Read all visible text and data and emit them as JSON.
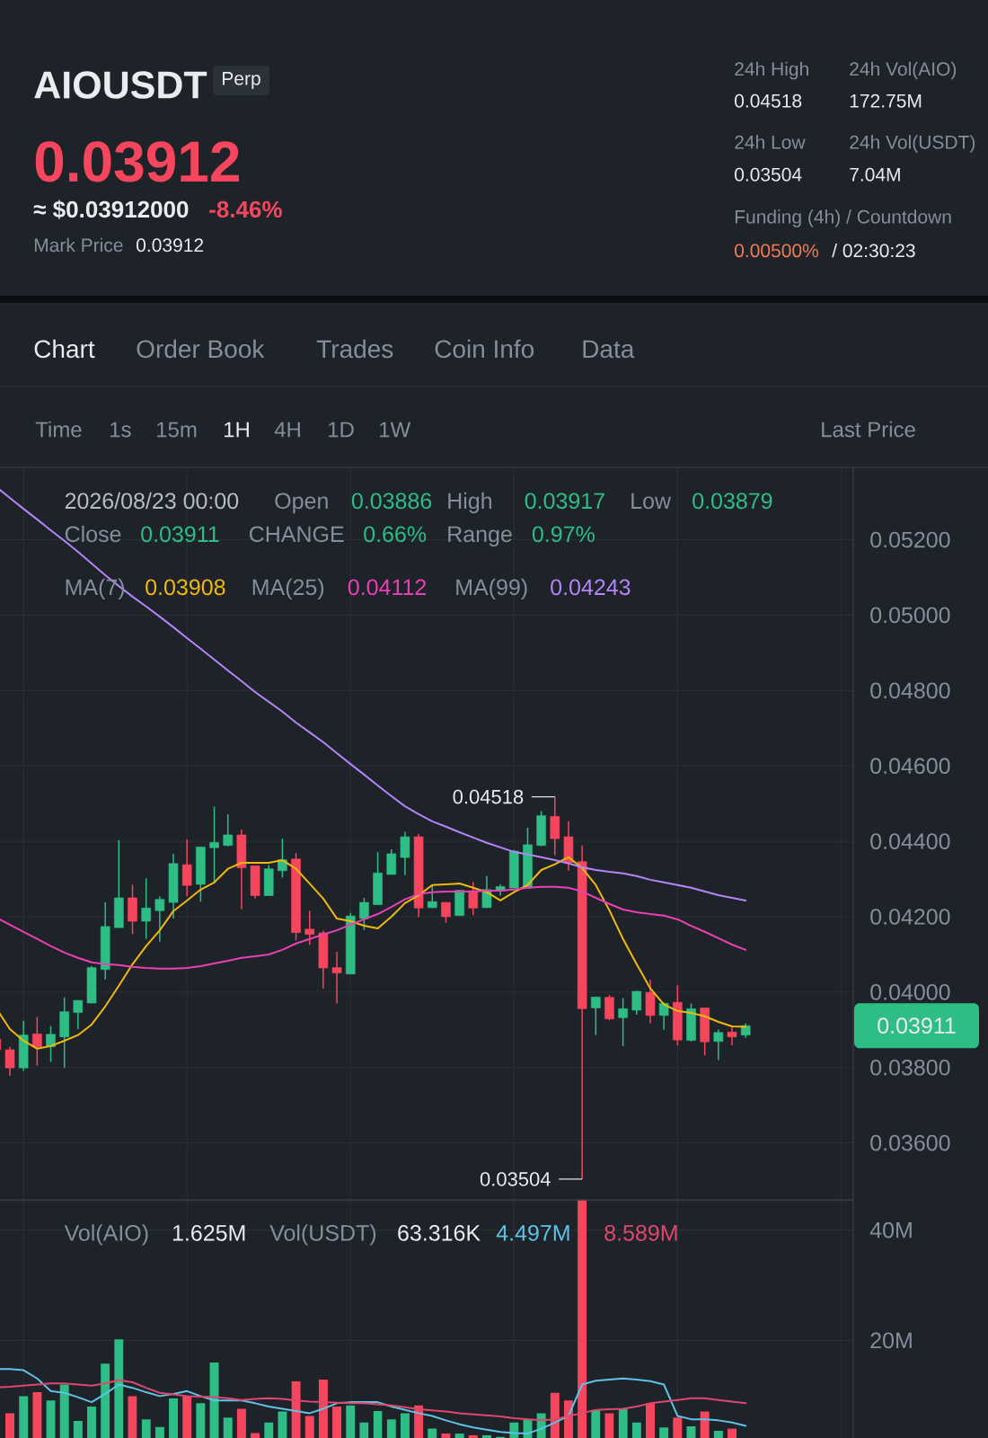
{
  "chart_data": [
    {
      "type": "candlestick",
      "title": "AIOUSDT",
      "categories": [
        null,
        null,
        null,
        null,
        null,
        null,
        null,
        null,
        null,
        null,
        null,
        null,
        null,
        null,
        null,
        null,
        null,
        null,
        null,
        null,
        null,
        null,
        null,
        null,
        null,
        null,
        null,
        null,
        null,
        null,
        null,
        null,
        null,
        null,
        null,
        null,
        null,
        null,
        null,
        null,
        null,
        null,
        null,
        null,
        null,
        null,
        null,
        null,
        null,
        null,
        null,
        null,
        null,
        null,
        null,
        null
      ],
      "ohlc": [
        [
          0.03875,
          0.03875,
          0.03847,
          0.03847
        ],
        [
          0.03847,
          0.03855,
          0.03778,
          0.03799
        ],
        [
          0.03799,
          0.03924,
          0.03791,
          0.03886
        ],
        [
          0.03889,
          0.03934,
          0.03805,
          0.03855
        ],
        [
          0.03855,
          0.0391,
          0.03815,
          0.03888
        ],
        [
          0.03881,
          0.03986,
          0.03799,
          0.03948
        ],
        [
          0.03946,
          0.03978,
          0.03902,
          0.03978
        ],
        [
          0.03971,
          0.04069,
          0.0397,
          0.04065
        ],
        [
          0.0406,
          0.04238,
          0.04033,
          0.04174
        ],
        [
          0.04171,
          0.04403,
          0.04171,
          0.0425
        ],
        [
          0.0425,
          0.04285,
          0.04154,
          0.04188
        ],
        [
          0.04188,
          0.04302,
          0.04141,
          0.04223
        ],
        [
          0.04216,
          0.04254,
          0.04134,
          0.04246
        ],
        [
          0.04238,
          0.04367,
          0.04195,
          0.04341
        ],
        [
          0.04338,
          0.04405,
          0.04254,
          0.04283
        ],
        [
          0.04286,
          0.04385,
          0.0424,
          0.04385
        ],
        [
          0.04383,
          0.04492,
          0.04288,
          0.04397
        ],
        [
          0.04389,
          0.04472,
          0.04387,
          0.04417
        ],
        [
          0.04417,
          0.04431,
          0.0422,
          0.0433
        ],
        [
          0.04335,
          0.04335,
          0.04248,
          0.04256
        ],
        [
          0.04256,
          0.04337,
          0.04256,
          0.04327
        ],
        [
          0.04322,
          0.04407,
          0.04304,
          0.04351
        ],
        [
          0.04353,
          0.04369,
          0.04137,
          0.04158
        ],
        [
          0.04167,
          0.04216,
          0.04125,
          0.04153
        ],
        [
          0.04157,
          0.04163,
          0.0401,
          0.04064
        ],
        [
          0.04065,
          0.04107,
          0.0397,
          0.04051
        ],
        [
          0.04048,
          0.0421,
          0.04048,
          0.04202
        ],
        [
          0.04195,
          0.0425,
          0.04165,
          0.04238
        ],
        [
          0.04232,
          0.04371,
          0.04232,
          0.04316
        ],
        [
          0.04312,
          0.04379,
          0.04312,
          0.04367
        ],
        [
          0.04357,
          0.04425,
          0.0431,
          0.04412
        ],
        [
          0.04412,
          0.04419,
          0.04199,
          0.04223
        ],
        [
          0.04224,
          0.04284,
          0.04223,
          0.0424
        ],
        [
          0.04238,
          0.04238,
          0.04184,
          0.042
        ],
        [
          0.04203,
          0.0427,
          0.04203,
          0.0427
        ],
        [
          0.04269,
          0.04292,
          0.04204,
          0.04223
        ],
        [
          0.04224,
          0.04308,
          0.04224,
          0.04272
        ],
        [
          0.04268,
          0.04286,
          0.04256,
          0.0428
        ],
        [
          0.04276,
          0.04377,
          0.04276,
          0.04374
        ],
        [
          0.04276,
          0.04436,
          0.04276,
          0.04391
        ],
        [
          0.04389,
          0.0448,
          0.04387,
          0.04468
        ],
        [
          0.04466,
          0.04518,
          0.04363,
          0.04407
        ],
        [
          0.04412,
          0.04453,
          0.04322,
          0.04343
        ],
        [
          0.04346,
          0.04389,
          0.03504,
          0.03956
        ],
        [
          0.03958,
          0.03987,
          0.03886,
          0.03987
        ],
        [
          0.03986,
          0.03992,
          0.03926,
          0.03929
        ],
        [
          0.03932,
          0.03984,
          0.03857,
          0.03956
        ],
        [
          0.03952,
          0.04004,
          0.0394,
          0.04002
        ],
        [
          0.03999,
          0.04033,
          0.03917,
          0.03938
        ],
        [
          0.03938,
          0.03973,
          0.039,
          0.0397
        ],
        [
          0.03973,
          0.04018,
          0.03859,
          0.03873
        ],
        [
          0.03872,
          0.0397,
          0.03869,
          0.03956
        ],
        [
          0.03958,
          0.03958,
          0.03832,
          0.03868
        ],
        [
          0.03869,
          0.03901,
          0.0382,
          0.03893
        ],
        [
          0.03894,
          0.0391,
          0.03859,
          0.03881
        ],
        [
          0.03886,
          0.03917,
          0.03879,
          0.03911
        ]
      ],
      "colors": [
        "#f6465d",
        "#f6465d",
        "#2ebd85",
        "#f6465d",
        "#2ebd85",
        "#2ebd85",
        "#2ebd85",
        "#2ebd85",
        "#2ebd85",
        "#2ebd85",
        "#f6465d",
        "#2ebd85",
        "#2ebd85",
        "#2ebd85",
        "#f6465d",
        "#2ebd85",
        "#2ebd85",
        "#2ebd85",
        "#f6465d",
        "#f6465d",
        "#2ebd85",
        "#2ebd85",
        "#f6465d",
        "#f6465d",
        "#f6465d",
        "#f6465d",
        "#2ebd85",
        "#2ebd85",
        "#2ebd85",
        "#2ebd85",
        "#2ebd85",
        "#f6465d",
        "#2ebd85",
        "#f6465d",
        "#2ebd85",
        "#f6465d",
        "#2ebd85",
        "#2ebd85",
        "#2ebd85",
        "#2ebd85",
        "#2ebd85",
        "#f6465d",
        "#f6465d",
        "#f6465d",
        "#2ebd85",
        "#f6465d",
        "#2ebd85",
        "#2ebd85",
        "#f6465d",
        "#2ebd85",
        "#f6465d",
        "#2ebd85",
        "#f6465d",
        "#2ebd85",
        "#f6465d",
        "#2ebd85"
      ],
      "series": [
        {
          "type": "line",
          "color": "#f0b90b",
          "values": [
            0.03957,
            0.03902,
            0.03871,
            0.0385,
            0.03857,
            0.03871,
            0.03886,
            0.03914,
            0.03962,
            0.04017,
            0.04074,
            0.04122,
            0.04164,
            0.04215,
            0.04243,
            0.04272,
            0.04291,
            0.04327,
            0.04343,
            0.04343,
            0.04343,
            0.0435,
            0.04327,
            0.04288,
            0.04248,
            0.04195,
            0.04188,
            0.04176,
            0.04169,
            0.042,
            0.04236,
            0.04257,
            0.04284,
            0.04286,
            0.04288,
            0.04277,
            0.04265,
            0.04243,
            0.04265,
            0.04284,
            0.04324,
            0.04339,
            0.04358,
            0.04329,
            0.04284,
            0.04217,
            0.04141,
            0.04074,
            0.0401,
            0.03967,
            0.0395,
            0.03945,
            0.03936,
            0.03921,
            0.03909,
            0.03908
          ]
        },
        {
          "type": "line",
          "color": "#eb40b5",
          "values": [
            0.04198,
            0.04179,
            0.0416,
            0.04141,
            0.04122,
            0.04105,
            0.04091,
            0.04079,
            0.04074,
            0.04072,
            0.04067,
            0.04064,
            0.04062,
            0.04062,
            0.04064,
            0.04069,
            0.04076,
            0.04083,
            0.04091,
            0.04095,
            0.041,
            0.04112,
            0.04129,
            0.04141,
            0.04153,
            0.04164,
            0.04179,
            0.04193,
            0.04207,
            0.04226,
            0.04246,
            0.0426,
            0.04265,
            0.04267,
            0.04267,
            0.04267,
            0.04269,
            0.04269,
            0.04272,
            0.04277,
            0.04279,
            0.04279,
            0.04277,
            0.04267,
            0.0425,
            0.04234,
            0.04219,
            0.04212,
            0.04207,
            0.04203,
            0.04193,
            0.04176,
            0.0416,
            0.04143,
            0.04126,
            0.04112
          ]
        },
        {
          "type": "line",
          "color": "#b385f8",
          "values": [
            0.0534,
            0.05311,
            0.05282,
            0.05254,
            0.05225,
            0.05197,
            0.05168,
            0.05137,
            0.05106,
            0.05077,
            0.05049,
            0.05023,
            0.04996,
            0.04968,
            0.04939,
            0.04911,
            0.04882,
            0.04853,
            0.04825,
            0.04796,
            0.0477,
            0.04744,
            0.04715,
            0.04689,
            0.04663,
            0.04634,
            0.04605,
            0.04577,
            0.04548,
            0.0452,
            0.04493,
            0.04472,
            0.04453,
            0.04439,
            0.04424,
            0.0441,
            0.04396,
            0.04384,
            0.04372,
            0.04365,
            0.04358,
            0.0435,
            0.04341,
            0.04331,
            0.04324,
            0.04319,
            0.04315,
            0.04308,
            0.04298,
            0.04291,
            0.04284,
            0.04277,
            0.04267,
            0.04257,
            0.0425,
            0.04243
          ]
        }
      ],
      "ylim": [
        0.03449,
        0.05392
      ],
      "yticks": [
        {
          "value": 0.036,
          "label": "0.03600"
        },
        {
          "value": 0.038,
          "label": "0.03800"
        },
        {
          "value": 0.04,
          "label": "0.04000"
        },
        {
          "value": 0.042,
          "label": "0.04200"
        },
        {
          "value": 0.044,
          "label": "0.04400"
        },
        {
          "value": 0.046,
          "label": "0.04600"
        },
        {
          "value": 0.048,
          "label": "0.04800"
        },
        {
          "value": 0.05,
          "label": "0.05000"
        },
        {
          "value": 0.052,
          "label": "0.05200"
        }
      ],
      "grid": true,
      "tick_labels": "y",
      "annotations": [
        "Perp",
        "0.03912",
        "≈ $0.03912000",
        "-8.46%",
        "Mark Price",
        "0.03912",
        "24h High",
        "0.04518",
        "24h Vol(AIO)",
        "172.75M",
        "24h Low",
        "0.03504",
        "24h Vol(USDT)",
        "7.04M",
        "Funding (4h) / Countdown",
        "0.00500%",
        "/ 02:30:23",
        "Chart",
        "Order Book",
        "Trades",
        "Coin Info",
        "Data",
        "Time",
        "1s",
        "15m",
        "1H",
        "4H",
        "1D",
        "1W",
        "Last Price",
        "2026/08/23 00:00",
        "Open",
        "0.03886",
        "High",
        "0.03917",
        "Low",
        "0.03879",
        "Close",
        "0.03911",
        "CHANGE",
        "0.66%",
        "Range",
        "0.97%",
        "MA(7)",
        "0.03908",
        "MA(25)",
        "0.04112",
        "MA(99)",
        "0.04243",
        "0.04518",
        "0.03504",
        "0.03911"
      ]
    },
    {
      "type": "bar",
      "categories": [
        null,
        null,
        null,
        null,
        null,
        null,
        null,
        null,
        null,
        null,
        null,
        null,
        null,
        null,
        null,
        null,
        null,
        null,
        null,
        null,
        null,
        null,
        null,
        null,
        null,
        null,
        null,
        null,
        null,
        null,
        null,
        null,
        null,
        null,
        null,
        null,
        null,
        null,
        null,
        null,
        null,
        null,
        null,
        null,
        null,
        null,
        null,
        null,
        null,
        null,
        null,
        null,
        null,
        null,
        null,
        null
      ],
      "series": [
        {
          "type": "bar",
          "colors": [
            "#f6465d",
            "#f6465d",
            "#2ebd85",
            "#f6465d",
            "#2ebd85",
            "#2ebd85",
            "#2ebd85",
            "#2ebd85",
            "#2ebd85",
            "#2ebd85",
            "#f6465d",
            "#2ebd85",
            "#2ebd85",
            "#2ebd85",
            "#f6465d",
            "#2ebd85",
            "#2ebd85",
            "#2ebd85",
            "#f6465d",
            "#f6465d",
            "#2ebd85",
            "#2ebd85",
            "#f6465d",
            "#f6465d",
            "#f6465d",
            "#f6465d",
            "#2ebd85",
            "#2ebd85",
            "#2ebd85",
            "#2ebd85",
            "#2ebd85",
            "#f6465d",
            "#2ebd85",
            "#f6465d",
            "#2ebd85",
            "#f6465d",
            "#2ebd85",
            "#2ebd85",
            "#2ebd85",
            "#2ebd85",
            "#2ebd85",
            "#f6465d",
            "#f6465d",
            "#f6465d",
            "#2ebd85",
            "#f6465d",
            "#2ebd85",
            "#2ebd85",
            "#f6465d",
            "#2ebd85",
            "#f6465d",
            "#2ebd85",
            "#f6465d",
            "#2ebd85",
            "#f6465d",
            "#2ebd85"
          ],
          "values": [
            null,
            6.8,
            9.9,
            10.6,
            9.1,
            12.0,
            5.4,
            8.0,
            15.8,
            20.2,
            9.9,
            5.7,
            4.3,
            9.5,
            9.9,
            8.6,
            16.0,
            6.0,
            7.6,
            3.2,
            5.1,
            7.1,
            12.6,
            6.3,
            12.9,
            8.0,
            8.2,
            5.1,
            7.2,
            5.7,
            6.8,
            8.2,
            4.0,
            3.1,
            3.1,
            2.8,
            2.8,
            2.5,
            5.1,
            5.7,
            6.8,
            10.5,
            9.1,
            45.4,
            7.4,
            6.8,
            7.6,
            5.1,
            8.6,
            4.2,
            6.0,
            4.4,
            7.1,
            3.6,
            4.0,
            null
          ]
        },
        {
          "type": "line",
          "color": "#5ec3e6",
          "values": [
            14.8,
            14.8,
            14.6,
            13.1,
            10.8,
            10.5,
            9.7,
            8.8,
            10.3,
            12.0,
            11.4,
            10.6,
            9.9,
            10.3,
            10.8,
            9.9,
            9.1,
            9.1,
            9.1,
            8.6,
            8.0,
            7.6,
            7.2,
            6.8,
            7.6,
            8.6,
            8.8,
            8.8,
            8.8,
            8.0,
            7.4,
            6.8,
            6.3,
            5.5,
            4.8,
            4.2,
            3.8,
            3.4,
            3.2,
            3.1,
            4.0,
            5.1,
            6.3,
            12.0,
            12.7,
            12.9,
            13.1,
            12.9,
            12.6,
            12.0,
            6.3,
            5.7,
            5.7,
            5.5,
            5.1,
            4.5
          ]
        },
        {
          "type": "line",
          "color": "#e0476d",
          "values": [
            11.5,
            11.6,
            11.8,
            12.0,
            12.2,
            12.2,
            12.0,
            11.8,
            12.2,
            12.8,
            12.4,
            11.4,
            10.5,
            10.2,
            9.9,
            9.8,
            9.7,
            9.5,
            9.2,
            9.4,
            9.5,
            9.4,
            9.1,
            8.9,
            8.8,
            8.7,
            8.6,
            8.6,
            8.4,
            8.2,
            7.9,
            7.5,
            7.3,
            7.1,
            6.8,
            6.6,
            6.4,
            6.2,
            5.9,
            5.7,
            5.5,
            5.7,
            6.3,
            6.8,
            7.4,
            7.5,
            7.6,
            8.0,
            8.6,
            8.9,
            9.2,
            9.5,
            9.5,
            9.2,
            8.9,
            8.6
          ]
        }
      ],
      "ylim": [
        2.3,
        45.4
      ],
      "yticks": [
        {
          "value": 20,
          "label": "20M"
        },
        {
          "value": 40,
          "label": "40M"
        }
      ],
      "grid": true,
      "tick_labels": "y",
      "annotations": [
        "Vol(AIO)",
        "1.625M",
        "Vol(USDT)",
        "63.316K",
        "4.497M",
        "8.589M"
      ]
    }
  ]
}
